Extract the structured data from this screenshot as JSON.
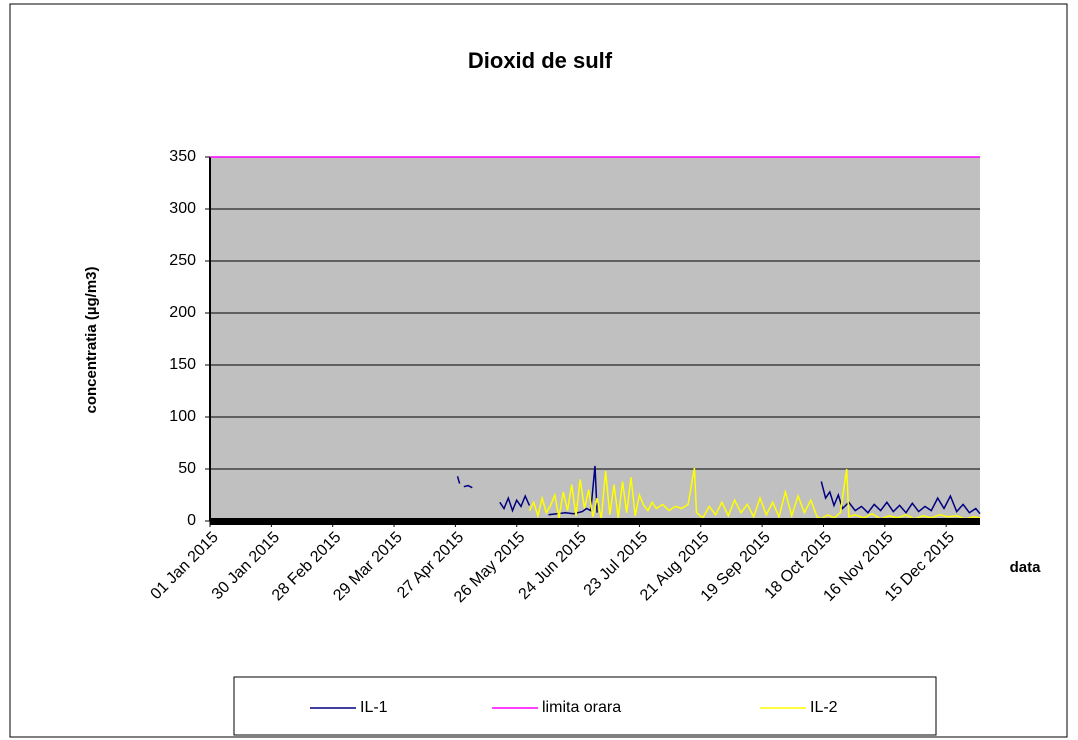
{
  "chart_data": {
    "type": "line",
    "title": "Dioxid de sulf",
    "y_label": "concentratia (µg/m3)",
    "x_label": "data",
    "xlim": [
      "01 Jan 2015",
      "31 Dec 2015"
    ],
    "xticks": [
      "01 Jan 2015",
      "30 Jan 2015",
      "28 Feb 2015",
      "29 Mar 2015",
      "27 Apr 2015",
      "26 May 2015",
      "24 Jun 2015",
      "23 Jul 2015",
      "21 Aug 2015",
      "19 Sep 2015",
      "18 Oct 2015",
      "16 Nov 2015",
      "15 Dec 2015"
    ],
    "ylim": [
      0,
      350
    ],
    "yticks": [
      0,
      50,
      100,
      150,
      200,
      250,
      300,
      350
    ],
    "grid": true,
    "legend": "bottom",
    "background": "#c0c0c0",
    "series": [
      {
        "name": "IL-1",
        "color": "#000080",
        "x": [
          "28 Apr 2015",
          "29 Apr 2015",
          "30 Apr 2015",
          "01 May 2015",
          "03 May 2015",
          "05 May 2015",
          "06 May 2015",
          "18 May 2015",
          "20 May 2015",
          "22 May 2015",
          "24 May 2015",
          "26 May 2015",
          "28 May 2015",
          "30 May 2015",
          "01 Jun 2015",
          "02 Jun 2015",
          "10 Jun 2015",
          "14 Jun 2015",
          "18 Jun 2015",
          "22 Jun 2015",
          "26 Jun 2015",
          "28 Jun 2015",
          "30 Jun 2015",
          "02 Jul 2015",
          "03 Jul 2015",
          "04 Jul 2015",
          "17 Oct 2015",
          "19 Oct 2015",
          "21 Oct 2015",
          "23 Oct 2015",
          "25 Oct 2015",
          "27 Oct 2015",
          "30 Oct 2015",
          "02 Nov 2015",
          "05 Nov 2015",
          "08 Nov 2015",
          "11 Nov 2015",
          "14 Nov 2015",
          "17 Nov 2015",
          "20 Nov 2015",
          "23 Nov 2015",
          "26 Nov 2015",
          "29 Nov 2015",
          "02 Dec 2015",
          "05 Dec 2015",
          "08 Dec 2015",
          "11 Dec 2015",
          "14 Dec 2015",
          "17 Dec 2015",
          "20 Dec 2015",
          "23 Dec 2015",
          "26 Dec 2015",
          "29 Dec 2015",
          "31 Dec 2015"
        ],
        "values": [
          43,
          36,
          null,
          33,
          34,
          32,
          null,
          18,
          12,
          22,
          10,
          20,
          14,
          24,
          15,
          null,
          6,
          7,
          8,
          7,
          9,
          12,
          10,
          53,
          8,
          null,
          38,
          22,
          28,
          15,
          25,
          12,
          18,
          10,
          14,
          8,
          16,
          10,
          18,
          9,
          15,
          8,
          17,
          9,
          14,
          10,
          22,
          12,
          24,
          9,
          16,
          8,
          12,
          7
        ]
      },
      {
        "name": "limita orara",
        "color": "#ff00ff",
        "x": [
          "01 Jan 2015",
          "31 Dec 2015"
        ],
        "values": [
          350,
          350
        ]
      },
      {
        "name": "IL-2",
        "color": "#ffff00",
        "x": [
          "01 Jun 2015",
          "03 Jun 2015",
          "05 Jun 2015",
          "07 Jun 2015",
          "09 Jun 2015",
          "11 Jun 2015",
          "13 Jun 2015",
          "15 Jun 2015",
          "17 Jun 2015",
          "19 Jun 2015",
          "21 Jun 2015",
          "23 Jun 2015",
          "25 Jun 2015",
          "27 Jun 2015",
          "29 Jun 2015",
          "01 Jul 2015",
          "03 Jul 2015",
          "05 Jul 2015",
          "07 Jul 2015",
          "09 Jul 2015",
          "11 Jul 2015",
          "13 Jul 2015",
          "15 Jul 2015",
          "17 Jul 2015",
          "19 Jul 2015",
          "21 Jul 2015",
          "23 Jul 2015",
          "25 Jul 2015",
          "27 Jul 2015",
          "29 Jul 2015",
          "31 Jul 2015",
          "03 Aug 2015",
          "06 Aug 2015",
          "09 Aug 2015",
          "12 Aug 2015",
          "15 Aug 2015",
          "18 Aug 2015",
          "19 Aug 2015",
          "22 Aug 2015",
          "25 Aug 2015",
          "28 Aug 2015",
          "31 Aug 2015",
          "03 Sep 2015",
          "06 Sep 2015",
          "09 Sep 2015",
          "12 Sep 2015",
          "15 Sep 2015",
          "18 Sep 2015",
          "21 Sep 2015",
          "24 Sep 2015",
          "27 Sep 2015",
          "30 Sep 2015",
          "03 Oct 2015",
          "06 Oct 2015",
          "09 Oct 2015",
          "12 Oct 2015",
          "15 Oct 2015",
          "17 Oct 2015",
          "20 Oct 2015",
          "23 Oct 2015",
          "26 Oct 2015",
          "29 Oct 2015",
          "30 Oct 2015",
          "02 Nov 2015",
          "06 Nov 2015",
          "10 Nov 2015",
          "14 Nov 2015",
          "18 Nov 2015",
          "22 Nov 2015",
          "26 Nov 2015",
          "30 Nov 2015",
          "04 Dec 2015",
          "08 Dec 2015",
          "12 Dec 2015",
          "16 Dec 2015",
          "20 Dec 2015",
          "24 Dec 2015",
          "28 Dec 2015",
          "31 Dec 2015"
        ],
        "values": [
          10,
          18,
          5,
          22,
          8,
          15,
          25,
          3,
          28,
          10,
          35,
          5,
          40,
          12,
          30,
          4,
          22,
          2,
          48,
          6,
          35,
          3,
          38,
          8,
          42,
          5,
          25,
          15,
          10,
          18,
          12,
          16,
          10,
          14,
          12,
          16,
          51,
          8,
          3,
          14,
          6,
          18,
          5,
          20,
          8,
          16,
          4,
          22,
          6,
          18,
          4,
          28,
          5,
          24,
          8,
          20,
          4,
          2,
          6,
          3,
          8,
          50,
          4,
          6,
          3,
          7,
          2,
          5,
          3,
          6,
          2,
          5,
          3,
          6,
          4,
          5,
          2,
          4,
          3
        ]
      }
    ]
  }
}
